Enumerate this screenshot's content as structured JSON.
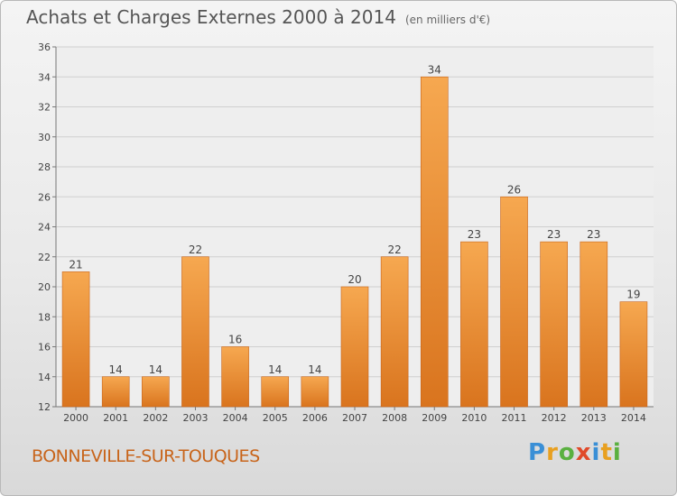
{
  "header": {
    "title": "Achats et Charges Externes 2000 à 2014",
    "unit": "(en milliers d'€)"
  },
  "footer": {
    "commune": "BONNEVILLE-SUR-TOUQUES",
    "logo": "Proxiti"
  },
  "colors": {
    "bar_light": "#f6a850",
    "bar_dark": "#d9741e",
    "bar_edge": "#c8641a",
    "grid": "#cfcfcf"
  },
  "chart_data": {
    "type": "bar",
    "title": "Achats et Charges Externes 2000 à 2014",
    "subtitle": "(en milliers d'€)",
    "xlabel": "",
    "ylabel": "",
    "categories": [
      "2000",
      "2001",
      "2002",
      "2003",
      "2004",
      "2005",
      "2006",
      "2007",
      "2008",
      "2009",
      "2010",
      "2011",
      "2012",
      "2013",
      "2014"
    ],
    "values": [
      21,
      14,
      14,
      22,
      16,
      14,
      14,
      20,
      22,
      34,
      23,
      26,
      23,
      23,
      19
    ],
    "ylim": [
      12,
      36
    ],
    "yticks": [
      12,
      14,
      16,
      18,
      20,
      22,
      24,
      26,
      28,
      30,
      32,
      34,
      36
    ],
    "grid": true,
    "data_labels": true
  }
}
